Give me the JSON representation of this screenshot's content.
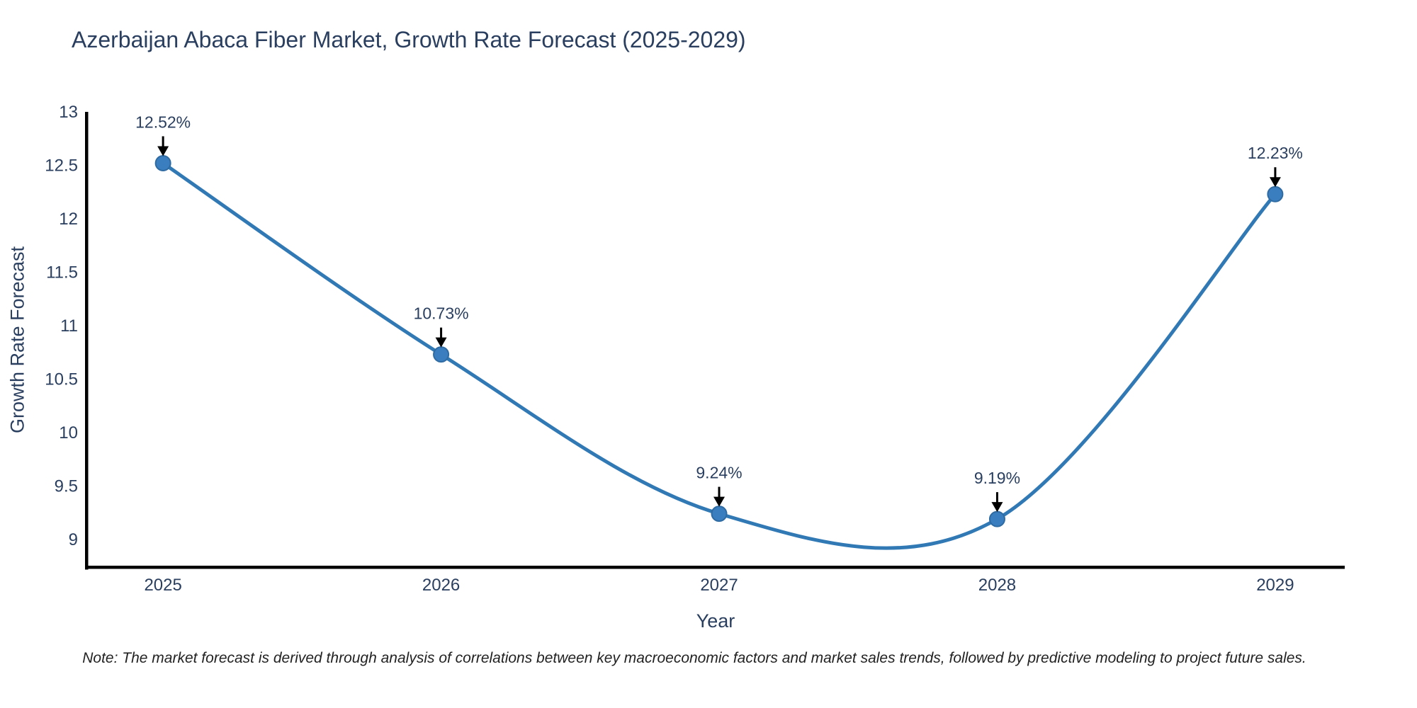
{
  "note": "Note: The market forecast is derived through analysis of correlations between key macroeconomic factors and market sales trends, followed by predictive modeling to project future sales.",
  "chart_data": {
    "type": "line",
    "title": "Azerbaijan Abaca Fiber Market, Growth Rate Forecast (2025-2029)",
    "xlabel": "Year",
    "ylabel": "Growth Rate Forecast",
    "x": [
      2025,
      2026,
      2027,
      2028,
      2029
    ],
    "values": [
      12.52,
      10.73,
      9.24,
      9.19,
      12.23
    ],
    "point_labels": [
      "12.52%",
      "10.73%",
      "9.24%",
      "9.19%",
      "12.23%"
    ],
    "series_name": "Growth Rate Forecast",
    "line_shape": "spline",
    "markers": true,
    "grid": false,
    "legend": "none",
    "annotations": "value labels with down arrows above each point",
    "xticks": [
      "2025",
      "2026",
      "2027",
      "2028",
      "2029"
    ],
    "yticks": [
      "13",
      "12.5",
      "12",
      "11.5",
      "11",
      "10.5",
      "10",
      "9.5",
      "9"
    ],
    "ytick_values": [
      13,
      12.5,
      12,
      11.5,
      11,
      10.5,
      10,
      9.5,
      9
    ],
    "xlim": [
      2024.727,
      2029.25
    ],
    "ylim": [
      8.747,
      13
    ],
    "colors": {
      "line": "#3179b5",
      "marker": "#3a7ebf",
      "marker_edge": "#2f6ba3",
      "axis": "#000000",
      "arrow": "#000000",
      "text": "#2a3f5f",
      "note_text": "#222222",
      "background": "#ffffff"
    }
  }
}
